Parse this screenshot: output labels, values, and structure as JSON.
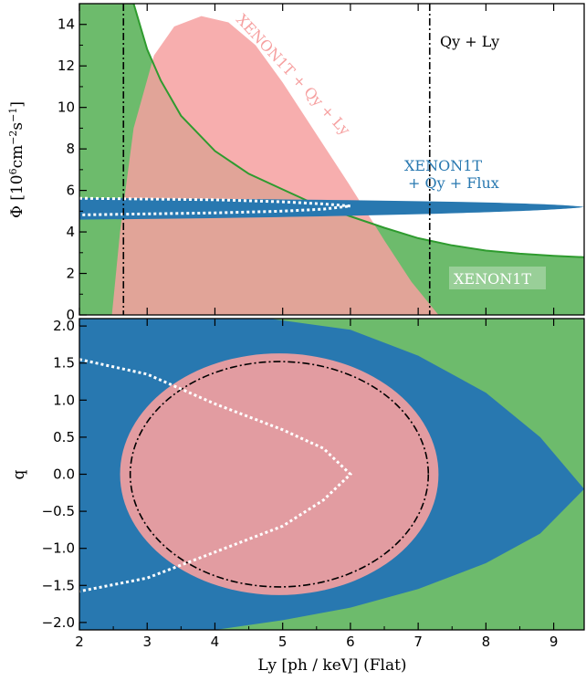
{
  "chart_data": [
    {
      "type": "area",
      "panel": "top",
      "ylabel": "Φ [10⁶cm⁻²s⁻¹]",
      "ylabel_parts": [
        "Φ [10",
        "6",
        "cm",
        "−2",
        "s",
        "−1",
        "]"
      ],
      "xlim": [
        2,
        9.45
      ],
      "ylim": [
        0,
        15
      ],
      "yticks": [
        "0",
        "2",
        "4",
        "6",
        "8",
        "10",
        "12",
        "14"
      ],
      "colors": {
        "xenon1t": "#6dbb6c",
        "curve": "#2e9b2e",
        "salmon": "#f6a0a0",
        "blue": "#2878b0"
      },
      "annotations": {
        "xenon1t_qy_ly": "XENON1T + Qy + Ly",
        "qy_ly": "Qy + Ly",
        "xenon1t_qy_flux": [
          "XENON1T",
          "+ Qy + Flux"
        ],
        "xenon1t": "XENON1T"
      },
      "vertical_lines_x": [
        2.65,
        7.17
      ],
      "xenon1t_boundary": [
        [
          2.8,
          15
        ],
        [
          3.0,
          12.8
        ],
        [
          3.2,
          11.3
        ],
        [
          3.5,
          9.6
        ],
        [
          4,
          7.9
        ],
        [
          4.5,
          6.8
        ],
        [
          5,
          6.05
        ],
        [
          5.5,
          5.3
        ],
        [
          6,
          4.75
        ],
        [
          6.5,
          4.2
        ],
        [
          7,
          3.7
        ],
        [
          7.5,
          3.35
        ],
        [
          8,
          3.1
        ],
        [
          8.5,
          2.95
        ],
        [
          9,
          2.85
        ],
        [
          9.45,
          2.78
        ]
      ],
      "salmon_region": [
        [
          2.48,
          0
        ],
        [
          2.6,
          4
        ],
        [
          2.8,
          9
        ],
        [
          3.1,
          12.5
        ],
        [
          3.4,
          13.9
        ],
        [
          3.8,
          14.4
        ],
        [
          4.2,
          14.1
        ],
        [
          4.6,
          13
        ],
        [
          5.0,
          11.2
        ],
        [
          5.5,
          8.7
        ],
        [
          6.0,
          6.2
        ],
        [
          6.5,
          3.6
        ],
        [
          6.9,
          1.6
        ],
        [
          7.3,
          0
        ]
      ],
      "blue_ellipse": {
        "x_range": [
          2.0,
          9.45
        ],
        "y_center": 5.2,
        "y_half_width_left": 0.35
      },
      "white_dotted_contour": [
        [
          2,
          5.62
        ],
        [
          4,
          5.55
        ],
        [
          5,
          5.45
        ],
        [
          5.6,
          5.35
        ],
        [
          6.0,
          5.25
        ],
        [
          5.6,
          5.1
        ],
        [
          5,
          5.0
        ],
        [
          4,
          4.92
        ],
        [
          2,
          4.82
        ]
      ]
    },
    {
      "type": "area",
      "panel": "bottom",
      "xlabel": "Ly [ph / keV] (Flat)",
      "ylabel": "q",
      "xlim": [
        2,
        9.45
      ],
      "ylim": [
        -2.1,
        2.1
      ],
      "xticks": [
        "2",
        "3",
        "4",
        "5",
        "6",
        "7",
        "8",
        "9"
      ],
      "yticks": [
        "−2.0",
        "−1.5",
        "−1.0",
        "−0.5",
        "0.0",
        "0.5",
        "1.0",
        "1.5",
        "2.0"
      ],
      "yticks_values": [
        -2.0,
        -1.5,
        -1.0,
        -0.5,
        0.0,
        0.5,
        1.0,
        1.5,
        2.0
      ],
      "blue_region": [
        [
          2,
          2.1
        ],
        [
          4.8,
          2.1
        ],
        [
          6,
          1.95
        ],
        [
          7,
          1.6
        ],
        [
          8,
          1.1
        ],
        [
          8.8,
          0.5
        ],
        [
          9.45,
          -0.2
        ],
        [
          8.8,
          -0.8
        ],
        [
          8,
          -1.2
        ],
        [
          7,
          -1.55
        ],
        [
          6,
          -1.8
        ],
        [
          5,
          -1.97
        ],
        [
          4,
          -2.1
        ],
        [
          2,
          -2.1
        ]
      ],
      "salmon_ellipse": {
        "center": [
          4.95,
          0.0
        ],
        "rx": 2.35,
        "ry": 1.63
      },
      "dashdot_ellipse": {
        "center": [
          4.95,
          0.0
        ],
        "rx": 2.2,
        "ry": 1.52
      },
      "white_dotted_contour": [
        [
          2,
          1.55
        ],
        [
          3,
          1.35
        ],
        [
          4,
          0.95
        ],
        [
          5,
          0.6
        ],
        [
          5.6,
          0.35
        ],
        [
          6,
          0.0
        ],
        [
          5.6,
          -0.35
        ],
        [
          5,
          -0.7
        ],
        [
          4,
          -1.05
        ],
        [
          3,
          -1.4
        ],
        [
          2,
          -1.58
        ]
      ]
    }
  ]
}
